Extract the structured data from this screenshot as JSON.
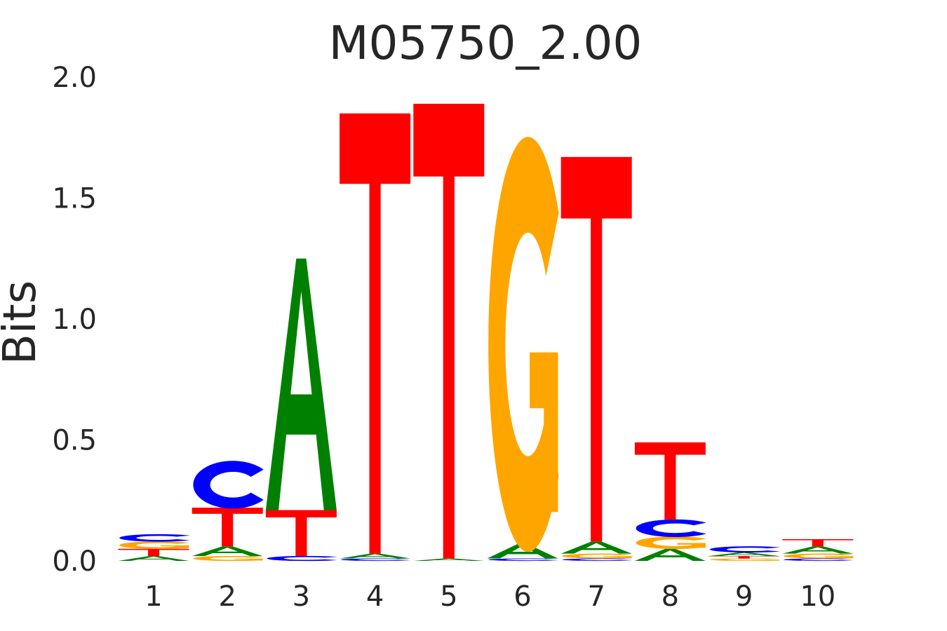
{
  "chart_data": {
    "type": "sequence-logo",
    "title": "M05750_2.00",
    "xlabel": "",
    "ylabel": "Bits",
    "ylim": [
      0,
      2.0
    ],
    "yticks": [
      "0.0",
      "0.5",
      "1.0",
      "1.5",
      "2.0"
    ],
    "positions": [
      "1",
      "2",
      "3",
      "4",
      "5",
      "6",
      "7",
      "8",
      "9",
      "10"
    ],
    "colors": {
      "A": "#008000",
      "C": "#0000ff",
      "G": "#ffa500",
      "T": "#ff0000"
    },
    "columns": [
      [
        {
          "base": "A",
          "bits": 0.02
        },
        {
          "base": "T",
          "bits": 0.03
        },
        {
          "base": "G",
          "bits": 0.03
        },
        {
          "base": "C",
          "bits": 0.03
        }
      ],
      [
        {
          "base": "G",
          "bits": 0.02
        },
        {
          "base": "A",
          "bits": 0.04
        },
        {
          "base": "T",
          "bits": 0.16
        },
        {
          "base": "C",
          "bits": 0.19
        }
      ],
      [
        {
          "base": "C",
          "bits": 0.02
        },
        {
          "base": "T",
          "bits": 0.19
        },
        {
          "base": "A",
          "bits": 1.04
        }
      ],
      [
        {
          "base": "C",
          "bits": 0.01
        },
        {
          "base": "A",
          "bits": 0.02
        },
        {
          "base": "T",
          "bits": 1.82
        }
      ],
      [
        {
          "base": "A",
          "bits": 0.01
        },
        {
          "base": "T",
          "bits": 1.88
        }
      ],
      [
        {
          "base": "C",
          "bits": 0.01
        },
        {
          "base": "A",
          "bits": 0.06
        },
        {
          "base": "G",
          "bits": 1.65
        }
      ],
      [
        {
          "base": "C",
          "bits": 0.01
        },
        {
          "base": "G",
          "bits": 0.02
        },
        {
          "base": "A",
          "bits": 0.05
        },
        {
          "base": "T",
          "bits": 1.59
        }
      ],
      [
        {
          "base": "A",
          "bits": 0.05
        },
        {
          "base": "G",
          "bits": 0.05
        },
        {
          "base": "C",
          "bits": 0.07
        },
        {
          "base": "T",
          "bits": 0.32
        }
      ],
      [
        {
          "base": "G",
          "bits": 0.01
        },
        {
          "base": "T",
          "bits": 0.01
        },
        {
          "base": "A",
          "bits": 0.015
        },
        {
          "base": "C",
          "bits": 0.025
        }
      ],
      [
        {
          "base": "C",
          "bits": 0.01
        },
        {
          "base": "G",
          "bits": 0.02
        },
        {
          "base": "A",
          "bits": 0.03
        },
        {
          "base": "T",
          "bits": 0.03
        }
      ]
    ]
  }
}
